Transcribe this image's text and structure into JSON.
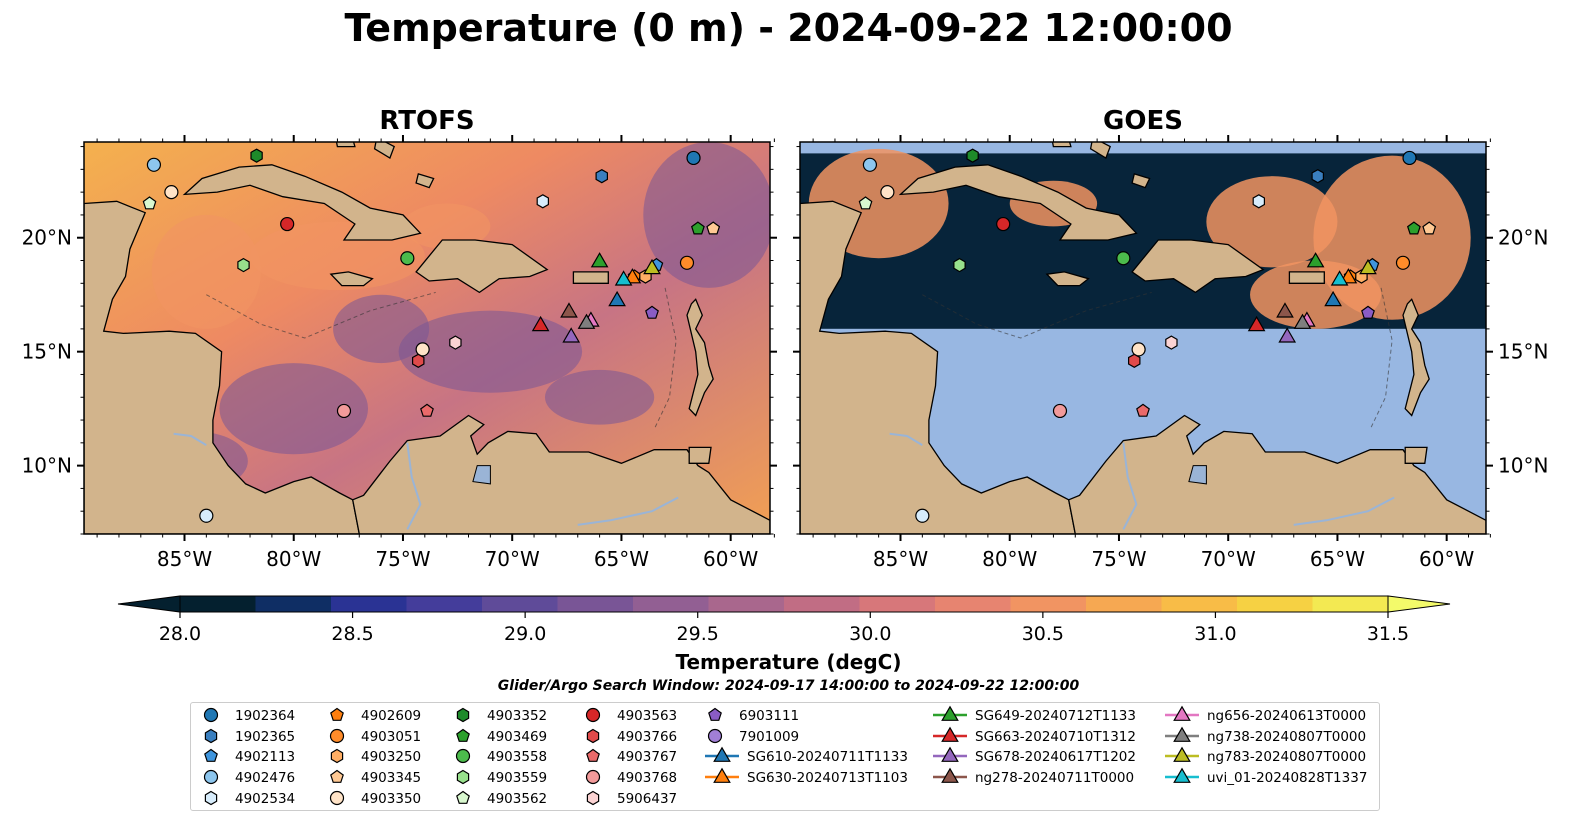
{
  "title": "Temperature (0 m) - 2024-09-22 12:00:00",
  "panels": [
    {
      "name": "RTOFS"
    },
    {
      "name": "GOES"
    }
  ],
  "axes": {
    "lon_ticks": [
      "85°W",
      "80°W",
      "75°W",
      "70°W",
      "65°W",
      "60°W"
    ],
    "lat_ticks": [
      "20°N",
      "15°N",
      "10°N"
    ],
    "lon_range": [
      -89.6,
      -58.2
    ],
    "lat_range": [
      7.0,
      24.2
    ]
  },
  "colorbar": {
    "label": "Temperature (degC)",
    "ticks": [
      "28.0",
      "28.5",
      "29.0",
      "29.5",
      "30.0",
      "30.5",
      "31.0",
      "31.5"
    ],
    "vmin": 28.0,
    "vmax": 31.5,
    "levels": 16,
    "colors": [
      "#04202f",
      "#0f2e64",
      "#2a3394",
      "#443d9b",
      "#5f4b99",
      "#795596",
      "#925f93",
      "#a9678d",
      "#c16d84",
      "#d7777a",
      "#e78470",
      "#f19462",
      "#f6a852",
      "#f8bc47",
      "#f6d143",
      "#f3e952"
    ]
  },
  "search_window": "Glider/Argo Search Window: 2024-09-17 14:00:00 to 2024-09-22 12:00:00",
  "legend": {
    "columns": [
      [
        {
          "label": "1902364",
          "marker": "circle",
          "color": "#1f77b4"
        },
        {
          "label": "1902365",
          "marker": "hexagon",
          "color": "#3a7fbf"
        },
        {
          "label": "4902113",
          "marker": "pentagon",
          "color": "#3f95dd"
        },
        {
          "label": "4902476",
          "marker": "circle",
          "color": "#8dc6ee"
        },
        {
          "label": "4902534",
          "marker": "hexagon",
          "color": "#d7ecfb"
        }
      ],
      [
        {
          "label": "4902609",
          "marker": "pentagon",
          "color": "#ff7f0e"
        },
        {
          "label": "4903051",
          "marker": "circle",
          "color": "#ff8c2a"
        },
        {
          "label": "4903250",
          "marker": "hexagon",
          "color": "#ffae64"
        },
        {
          "label": "4903345",
          "marker": "pentagon",
          "color": "#ffc994"
        },
        {
          "label": "4903350",
          "marker": "circle",
          "color": "#ffe3c7"
        }
      ],
      [
        {
          "label": "4903352",
          "marker": "hexagon",
          "color": "#1e8a2a"
        },
        {
          "label": "4903469",
          "marker": "pentagon",
          "color": "#2ca02c"
        },
        {
          "label": "4903558",
          "marker": "circle",
          "color": "#4cbb4c"
        },
        {
          "label": "4903559",
          "marker": "hexagon",
          "color": "#98e08c"
        },
        {
          "label": "4903562",
          "marker": "pentagon",
          "color": "#d9f8cf"
        }
      ],
      [
        {
          "label": "4903563",
          "marker": "circle",
          "color": "#d62728"
        },
        {
          "label": "4903766",
          "marker": "hexagon",
          "color": "#e04a4a"
        },
        {
          "label": "4903767",
          "marker": "pentagon",
          "color": "#ea6a6a"
        },
        {
          "label": "4903768",
          "marker": "circle",
          "color": "#f29a9a"
        },
        {
          "label": "5906437",
          "marker": "hexagon",
          "color": "#fbd3d3"
        }
      ],
      [
        {
          "label": "6903111",
          "marker": "pentagon",
          "color": "#8a5cc4"
        },
        {
          "label": "7901009",
          "marker": "circle",
          "color": "#a17fd6"
        },
        {
          "label": "SG610-20240711T1133",
          "marker": "triangle",
          "color": "#1f77b4",
          "line": true
        },
        {
          "label": "SG630-20240713T1103",
          "marker": "triangle",
          "color": "#ff7f0e",
          "line": true
        }
      ],
      [
        {
          "label": "SG649-20240712T1133",
          "marker": "triangle",
          "color": "#2ca02c",
          "line": true
        },
        {
          "label": "SG663-20240710T1312",
          "marker": "triangle",
          "color": "#d62728",
          "line": true
        },
        {
          "label": "SG678-20240617T1202",
          "marker": "triangle",
          "color": "#9467bd",
          "line": true
        },
        {
          "label": "ng278-20240711T0000",
          "marker": "triangle",
          "color": "#8c564b",
          "line": true
        }
      ],
      [
        {
          "label": "ng656-20240613T0000",
          "marker": "triangle",
          "color": "#e377c2",
          "line": true
        },
        {
          "label": "ng738-20240807T0000",
          "marker": "triangle",
          "color": "#7f7f7f",
          "line": true
        },
        {
          "label": "ng783-20240807T0000",
          "marker": "triangle",
          "color": "#bcbd22",
          "line": true
        },
        {
          "label": "uvi_01-20240828T1337",
          "marker": "triangle",
          "color": "#17becf",
          "line": true
        }
      ]
    ]
  },
  "markers": [
    {
      "id": "1902364",
      "lon": -61.7,
      "lat": 23.5,
      "marker": "circle",
      "color": "#1f77b4"
    },
    {
      "id": "1902365",
      "lon": -65.9,
      "lat": 22.7,
      "marker": "hexagon",
      "color": "#3a7fbf"
    },
    {
      "id": "4902113",
      "lon": -63.4,
      "lat": 18.8,
      "marker": "pentagon",
      "color": "#3f95dd"
    },
    {
      "id": "4902476",
      "lon": -86.4,
      "lat": 23.2,
      "marker": "circle",
      "color": "#8dc6ee"
    },
    {
      "id": "4902534",
      "lon": -68.6,
      "lat": 21.6,
      "marker": "hexagon",
      "color": "#d7ecfb"
    },
    {
      "id": "4902534b",
      "lon": -84.0,
      "lat": 7.8,
      "marker": "circle",
      "color": "#d7ecfb"
    },
    {
      "id": "4902609",
      "lon": -64.4,
      "lat": 18.3,
      "marker": "pentagon",
      "color": "#ff7f0e"
    },
    {
      "id": "4903051",
      "lon": -62.0,
      "lat": 18.9,
      "marker": "circle",
      "color": "#ff8c2a"
    },
    {
      "id": "4903250",
      "lon": -63.9,
      "lat": 18.3,
      "marker": "hexagon",
      "color": "#ffae64"
    },
    {
      "id": "4903345",
      "lon": -60.8,
      "lat": 20.4,
      "marker": "pentagon",
      "color": "#ffc994"
    },
    {
      "id": "4903350",
      "lon": -74.1,
      "lat": 15.1,
      "marker": "circle",
      "color": "#ffe3c7"
    },
    {
      "id": "4903350b",
      "lon": -85.6,
      "lat": 22.0,
      "marker": "circle",
      "color": "#ffe3c7"
    },
    {
      "id": "4903352",
      "lon": -81.7,
      "lat": 23.6,
      "marker": "hexagon",
      "color": "#1e8a2a"
    },
    {
      "id": "4903469",
      "lon": -61.5,
      "lat": 20.4,
      "marker": "pentagon",
      "color": "#2ca02c"
    },
    {
      "id": "4903558",
      "lon": -74.8,
      "lat": 19.1,
      "marker": "circle",
      "color": "#4cbb4c"
    },
    {
      "id": "4903559",
      "lon": -82.3,
      "lat": 18.8,
      "marker": "hexagon",
      "color": "#98e08c"
    },
    {
      "id": "4903562",
      "lon": -86.6,
      "lat": 21.5,
      "marker": "pentagon",
      "color": "#d9f8cf"
    },
    {
      "id": "4903563",
      "lon": -80.3,
      "lat": 20.6,
      "marker": "circle",
      "color": "#d62728"
    },
    {
      "id": "4903766",
      "lon": -74.3,
      "lat": 14.6,
      "marker": "hexagon",
      "color": "#e04a4a"
    },
    {
      "id": "4903767",
      "lon": -73.9,
      "lat": 12.4,
      "marker": "pentagon",
      "color": "#ea6a6a"
    },
    {
      "id": "4903768",
      "lon": -77.7,
      "lat": 12.4,
      "marker": "circle",
      "color": "#f29a9a"
    },
    {
      "id": "5906437",
      "lon": -72.6,
      "lat": 15.4,
      "marker": "hexagon",
      "color": "#fbd3d3"
    },
    {
      "id": "6903111",
      "lon": -63.6,
      "lat": 16.7,
      "marker": "pentagon",
      "color": "#8a5cc4"
    },
    {
      "id": "SG610-20240711T1133",
      "lon": -65.2,
      "lat": 17.3,
      "marker": "triangle",
      "color": "#1f77b4"
    },
    {
      "id": "SG630-20240713T1103",
      "lon": -64.5,
      "lat": 18.3,
      "marker": "triangle",
      "color": "#ff7f0e"
    },
    {
      "id": "SG649-20240712T1133",
      "lon": -66.0,
      "lat": 19.0,
      "marker": "triangle",
      "color": "#2ca02c"
    },
    {
      "id": "SG663-20240710T1312",
      "lon": -68.7,
      "lat": 16.2,
      "marker": "triangle",
      "color": "#d62728"
    },
    {
      "id": "SG678-20240617T1202",
      "lon": -67.3,
      "lat": 15.7,
      "marker": "triangle",
      "color": "#9467bd"
    },
    {
      "id": "ng278-20240711T0000",
      "lon": -67.4,
      "lat": 16.8,
      "marker": "triangle",
      "color": "#8c564b"
    },
    {
      "id": "ng656-20240613T0000",
      "lon": -66.4,
      "lat": 16.4,
      "marker": "triangle",
      "color": "#e377c2"
    },
    {
      "id": "ng738-20240807T0000",
      "lon": -66.6,
      "lat": 16.3,
      "marker": "triangle",
      "color": "#7f7f7f"
    },
    {
      "id": "ng783-20240807T0000",
      "lon": -63.6,
      "lat": 18.7,
      "marker": "triangle",
      "color": "#bcbd22"
    },
    {
      "id": "uvi_01-20240828T1337",
      "lon": -64.9,
      "lat": 18.2,
      "marker": "triangle",
      "color": "#17becf"
    }
  ],
  "colors": {
    "land": "#d2b48c",
    "no_data": "#98b7e2",
    "water_mid": "#c16d84",
    "water_warm": "#f19462",
    "water_cool": "#795596",
    "rivers": "#9ab4d6"
  },
  "goes_coverage_lat_range": [
    16.0,
    23.7
  ]
}
